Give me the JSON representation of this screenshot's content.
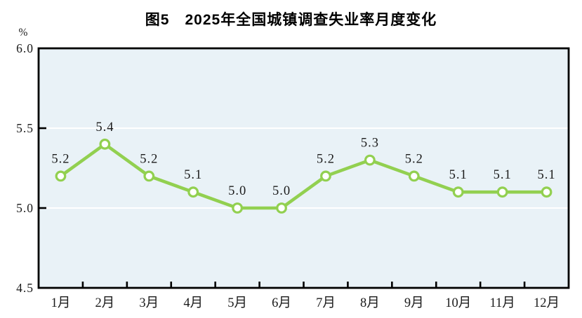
{
  "chart_data": {
    "type": "line",
    "title": "图5　2025年全国城镇调查失业率月度变化",
    "xlabel": "",
    "ylabel": "%",
    "categories": [
      "1月",
      "2月",
      "3月",
      "4月",
      "5月",
      "6月",
      "7月",
      "8月",
      "9月",
      "10月",
      "11月",
      "12月"
    ],
    "values": [
      5.2,
      5.4,
      5.2,
      5.1,
      5.0,
      5.0,
      5.2,
      5.3,
      5.2,
      5.1,
      5.1,
      5.1
    ],
    "value_labels": [
      "5.2",
      "5.4",
      "5.2",
      "5.1",
      "5.0",
      "5.0",
      "5.2",
      "5.3",
      "5.2",
      "5.1",
      "5.1",
      "5.1"
    ],
    "ylim": [
      4.5,
      6.0
    ],
    "yticks": [
      4.5,
      5.0,
      5.5,
      6.0
    ],
    "ytick_labels": [
      "4.5",
      "5.0",
      "5.5",
      "6.0"
    ],
    "gridlines_at": [
      5.0,
      5.5
    ],
    "grid": true,
    "legend": "none",
    "colors": {
      "line": "#92d050",
      "marker_fill": "#ffffff",
      "plot_background": "#e9f2f7",
      "gridline": "#ffffff",
      "axis": "#000000",
      "text": "#1a1a1a",
      "page_background": "#ffffff"
    }
  }
}
